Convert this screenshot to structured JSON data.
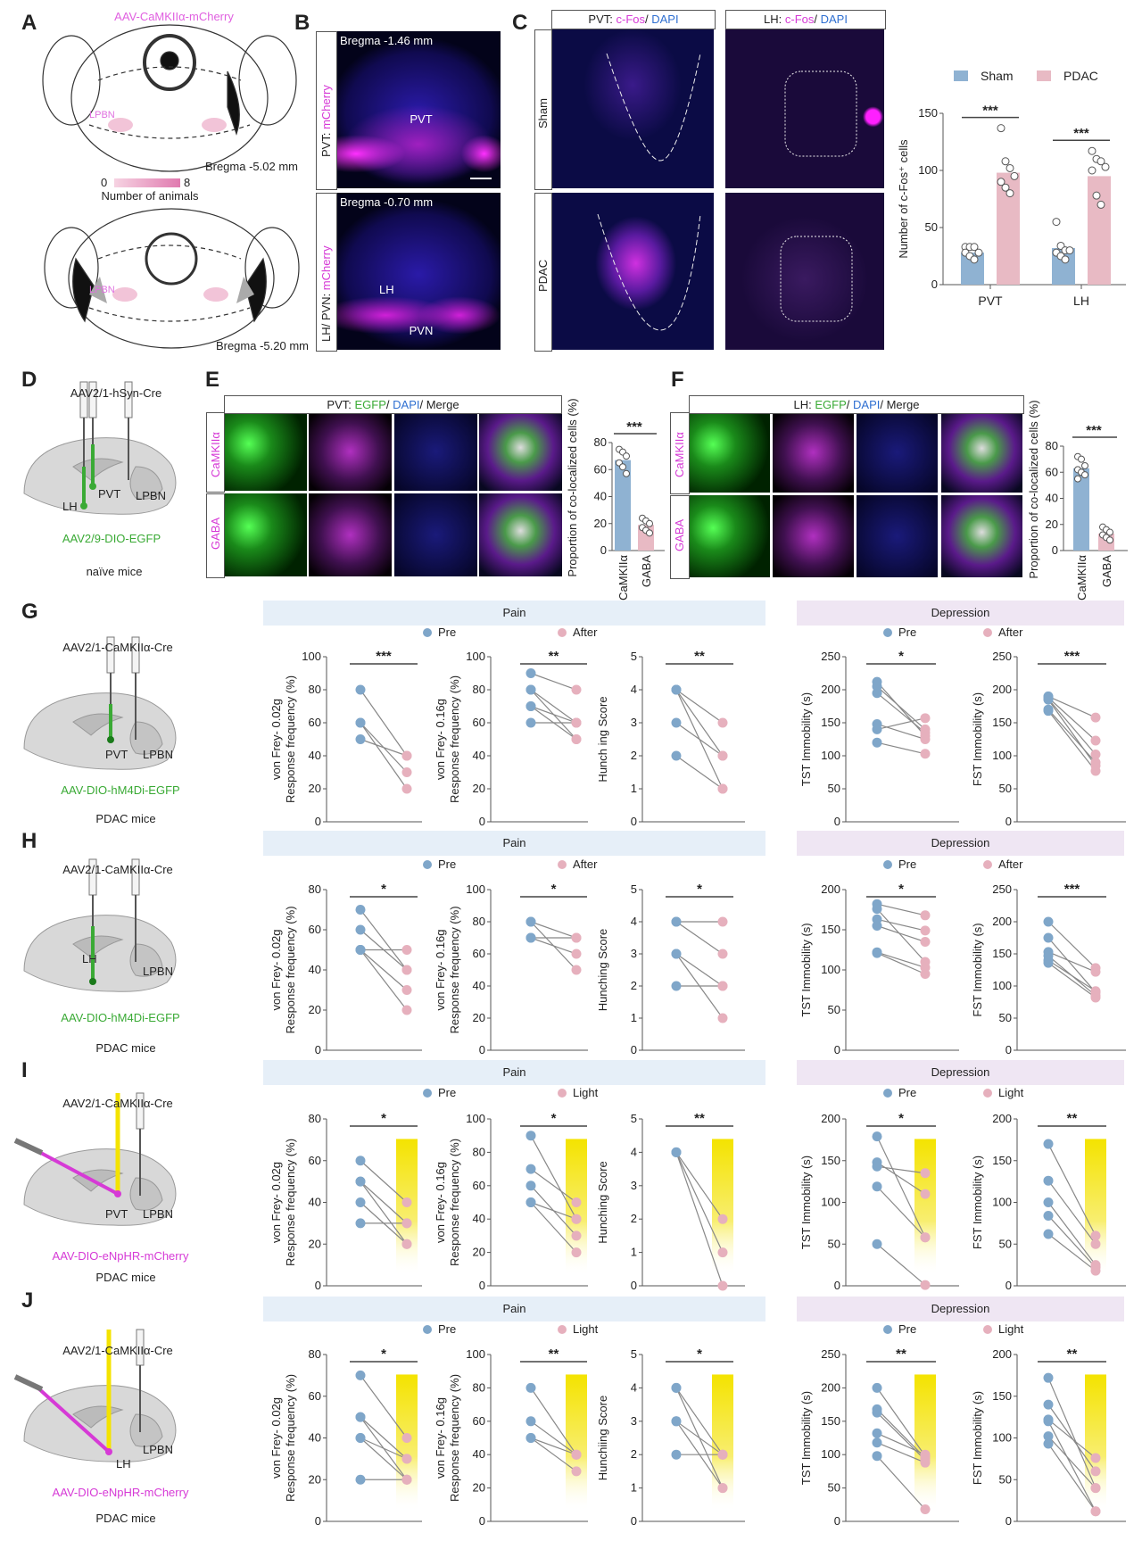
{
  "panel_labels": {
    "A": "A",
    "B": "B",
    "C": "C",
    "D": "D",
    "E": "E",
    "F": "F",
    "G": "G",
    "H": "H",
    "I": "I",
    "J": "J"
  },
  "colors": {
    "pre": "#7fa6c9",
    "post": "#e6b0bd",
    "bar_blue": "#8fb2d2",
    "bar_pink": "#e8bac4",
    "magenta": "#d63ad6",
    "green": "#3aaa35",
    "blue": "#2e6fd1",
    "pain_band": "#e6eff8",
    "depression_band": "#efe6f3",
    "light": "#f4e300"
  },
  "panel_a": {
    "title": "AAV-CaMKIIα-mCherry",
    "lpbn": "LPBN",
    "bregma_top": "Bregma -5.02 mm",
    "scale_min": "0",
    "scale_max": "8",
    "scale_label": "Number of animals",
    "bregma_bottom": "Bregma -5.20 mm"
  },
  "panel_b": {
    "row1": {
      "bregma": "Bregma -1.46 mm",
      "label_a": "PVT: ",
      "label_b": "mCherry",
      "region": "PVT"
    },
    "row2": {
      "bregma": "Bregma -0.70 mm",
      "label_a": "LH/ PVN: ",
      "label_b": "mCherry",
      "region_lh": "LH",
      "region_pvn": "PVN"
    }
  },
  "panel_c": {
    "col1": {
      "a": "PVT: ",
      "b": "c-Fos",
      "c": "/ ",
      "d": "DAPI"
    },
    "col2": {
      "a": "LH: ",
      "b": "c-Fos",
      "c": "/ ",
      "d": "DAPI"
    },
    "rows": [
      "Sham",
      "PDAC"
    ]
  },
  "panel_e": {
    "header": {
      "a": "PVT: ",
      "b": "EGFP",
      "c": "/ ",
      "d": "DAPI",
      "e": "/ Merge"
    },
    "rows": [
      "CaMKIIα",
      "GABA"
    ]
  },
  "panel_f": {
    "header": {
      "a": "LH: ",
      "b": "EGFP",
      "c": "/ ",
      "d": "DAPI",
      "e": "/ Merge"
    },
    "rows": [
      "CaMKIIα",
      "GABA"
    ]
  },
  "schematics": [
    {
      "panel": "D",
      "virus1": "AAV2/1-hSyn-Cre",
      "site1": "PVT",
      "site2": "LPBN",
      "site3": "LH",
      "virus2": "AAV2/9-DIO-EGFP",
      "mice": "naïve mice"
    },
    {
      "panel": "G",
      "virus1": "AAV2/1-CaMKIIα-Cre",
      "site1": "PVT",
      "site2": "LPBN",
      "virus2": "AAV-DIO-hM4Di-EGFP",
      "mice": "PDAC mice"
    },
    {
      "panel": "H",
      "virus1": "AAV2/1-CaMKIIα-Cre",
      "site1": "LH",
      "site2": "LPBN",
      "virus2": "AAV-DIO-hM4Di-EGFP",
      "mice": "PDAC mice"
    },
    {
      "panel": "I",
      "virus1": "AAV2/1-CaMKIIα-Cre",
      "site1": "PVT",
      "site2": "LPBN",
      "virus2": "AAV-DIO-eNpHR-mCherry",
      "mice": "PDAC mice"
    },
    {
      "panel": "J",
      "virus1": "AAV2/1-CaMKIIα-Cre",
      "site1": "LH",
      "site2": "LPBN",
      "virus2": "AAV-DIO-eNpHR-mCherry",
      "mice": "PDAC mice"
    }
  ],
  "behavior_rows": [
    {
      "panel": "G",
      "pain": "Pain",
      "depression": "Depression",
      "pre": "Pre",
      "post": "After"
    },
    {
      "panel": "H",
      "pain": "Pain",
      "depression": "Depression",
      "pre": "Pre",
      "post": "After"
    },
    {
      "panel": "I",
      "pain": "Pain",
      "depression": "Depression",
      "pre": "Pre",
      "post": "Light"
    },
    {
      "panel": "J",
      "pain": "Pain",
      "depression": "Depression",
      "pre": "Pre",
      "post": "Light"
    }
  ],
  "chart_data": [
    {
      "id": "C",
      "type": "bar",
      "categories": [
        "PVT",
        "LH"
      ],
      "ylabel": "Number of c-Fos⁺ cells",
      "ylim": [
        0,
        150
      ],
      "ticks": [
        0,
        50,
        100,
        150
      ],
      "legend_position": "top",
      "series": [
        {
          "name": "Sham",
          "values": [
            28,
            32
          ],
          "points": [
            [
              33,
              33,
              33,
              28,
              28,
              25,
              22
            ],
            [
              55,
              34,
              30,
              30,
              28,
              25,
              22
            ]
          ]
        },
        {
          "name": "PDAC",
          "values": [
            98,
            95
          ],
          "points": [
            [
              137,
              108,
              102,
              95,
              90,
              85,
              80
            ],
            [
              117,
              110,
              108,
              103,
              100,
              78,
              70
            ]
          ]
        }
      ],
      "significance": [
        "***",
        "***"
      ]
    },
    {
      "id": "E",
      "type": "bar",
      "categories": [
        "CaMKIIα",
        "GABA"
      ],
      "ylabel": "Proportion of co-localized cells (%)",
      "ylim": [
        0,
        80
      ],
      "ticks": [
        0,
        20,
        40,
        60,
        80
      ],
      "values": [
        67,
        19
      ],
      "points": [
        [
          75,
          73,
          70,
          65,
          62,
          57
        ],
        [
          24,
          22,
          20,
          17,
          15,
          13
        ]
      ],
      "significance": "***"
    },
    {
      "id": "F",
      "type": "bar",
      "categories": [
        "CaMKIIα",
        "GABA"
      ],
      "ylabel": "Proportion of co-localized cells (%)",
      "ylim": [
        0,
        80
      ],
      "ticks": [
        0,
        20,
        40,
        60,
        80
      ],
      "values": [
        63,
        13
      ],
      "points": [
        [
          72,
          70,
          65,
          62,
          60,
          58,
          55
        ],
        [
          18,
          16,
          14,
          12,
          10,
          8
        ]
      ],
      "significance": "***"
    },
    {
      "id": "G1",
      "row": "G",
      "type": "scatter",
      "ylabel": [
        "von Frey- 0.02g",
        "Response frequency (%)"
      ],
      "ylim": [
        0,
        100
      ],
      "ticks": [
        0,
        20,
        40,
        60,
        80,
        100
      ],
      "significance": "***",
      "pairs": [
        [
          80,
          40
        ],
        [
          60,
          30
        ],
        [
          60,
          20
        ],
        [
          50,
          40
        ]
      ]
    },
    {
      "id": "G2",
      "row": "G",
      "type": "scatter",
      "ylabel": [
        "von Frey- 0.16g",
        "Response frequency (%)"
      ],
      "ylim": [
        0,
        100
      ],
      "ticks": [
        0,
        20,
        40,
        60,
        80,
        100
      ],
      "significance": "**",
      "pairs": [
        [
          90,
          80
        ],
        [
          80,
          60
        ],
        [
          80,
          50
        ],
        [
          70,
          60
        ],
        [
          70,
          50
        ],
        [
          60,
          60
        ]
      ]
    },
    {
      "id": "G3",
      "row": "G",
      "type": "scatter",
      "ylabel": [
        "Hunch ing Score"
      ],
      "ylim": [
        0,
        5
      ],
      "ticks": [
        0,
        1,
        2,
        3,
        4,
        5
      ],
      "significance": "**",
      "pairs": [
        [
          4,
          3
        ],
        [
          4,
          1
        ],
        [
          4,
          2
        ],
        [
          3,
          2
        ],
        [
          2,
          1
        ]
      ]
    },
    {
      "id": "G4",
      "row": "G",
      "type": "scatter",
      "ylabel": [
        "TST Immobility (s)"
      ],
      "ylim": [
        0,
        250
      ],
      "ticks": [
        0,
        50,
        100,
        150,
        200,
        250
      ],
      "significance": "*",
      "pairs": [
        [
          212,
          130
        ],
        [
          205,
          140
        ],
        [
          195,
          135
        ],
        [
          148,
          125
        ],
        [
          140,
          157
        ],
        [
          120,
          103
        ]
      ]
    },
    {
      "id": "G5",
      "row": "G",
      "type": "scatter",
      "ylabel": [
        "FST Immobility (s)"
      ],
      "ylim": [
        0,
        250
      ],
      "ticks": [
        0,
        50,
        100,
        150,
        200,
        250
      ],
      "significance": "***",
      "pairs": [
        [
          190,
          158
        ],
        [
          188,
          123
        ],
        [
          186,
          102
        ],
        [
          185,
          85
        ],
        [
          170,
          90
        ],
        [
          168,
          77
        ]
      ]
    },
    {
      "id": "H1",
      "row": "H",
      "type": "scatter",
      "ylabel": [
        "von Frey- 0.02g",
        "Response frequency (%)"
      ],
      "ylim": [
        0,
        80
      ],
      "ticks": [
        0,
        20,
        40,
        60,
        80
      ],
      "significance": "*",
      "pairs": [
        [
          70,
          40
        ],
        [
          60,
          40
        ],
        [
          50,
          50
        ],
        [
          50,
          30
        ],
        [
          50,
          20
        ]
      ]
    },
    {
      "id": "H2",
      "row": "H",
      "type": "scatter",
      "ylabel": [
        "von Frey- 0.16g",
        "Response frequency (%)"
      ],
      "ylim": [
        0,
        100
      ],
      "ticks": [
        0,
        20,
        40,
        60,
        80,
        100
      ],
      "significance": "*",
      "pairs": [
        [
          80,
          70
        ],
        [
          80,
          50
        ],
        [
          70,
          70
        ],
        [
          70,
          60
        ]
      ]
    },
    {
      "id": "H3",
      "row": "H",
      "type": "scatter",
      "ylabel": [
        "Hunching Score"
      ],
      "ylim": [
        0,
        5
      ],
      "ticks": [
        0,
        1,
        2,
        3,
        4,
        5
      ],
      "significance": "*",
      "pairs": [
        [
          4,
          4
        ],
        [
          4,
          3
        ],
        [
          3,
          2
        ],
        [
          3,
          1
        ],
        [
          2,
          2
        ]
      ]
    },
    {
      "id": "H4",
      "row": "H",
      "type": "scatter",
      "ylabel": [
        "TST Immobility (s)"
      ],
      "ylim": [
        0,
        200
      ],
      "ticks": [
        0,
        50,
        100,
        150,
        200
      ],
      "significance": "*",
      "pairs": [
        [
          182,
          168
        ],
        [
          176,
          110
        ],
        [
          163,
          149
        ],
        [
          155,
          135
        ],
        [
          122,
          103
        ],
        [
          121,
          95
        ]
      ]
    },
    {
      "id": "H5",
      "row": "H",
      "type": "scatter",
      "ylabel": [
        "FST Immobility (s)"
      ],
      "ylim": [
        0,
        250
      ],
      "ticks": [
        0,
        50,
        100,
        150,
        200,
        250
      ],
      "significance": "***",
      "pairs": [
        [
          200,
          128
        ],
        [
          175,
          90
        ],
        [
          153,
          122
        ],
        [
          147,
          85
        ],
        [
          140,
          92
        ],
        [
          136,
          82
        ]
      ]
    },
    {
      "id": "I1",
      "row": "I",
      "type": "scatter",
      "ylabel": [
        "von Frey- 0.02g",
        "Response frequency (%)"
      ],
      "ylim": [
        0,
        80
      ],
      "ticks": [
        0,
        20,
        40,
        60,
        80
      ],
      "significance": "*",
      "light": true,
      "pairs": [
        [
          60,
          40
        ],
        [
          50,
          30
        ],
        [
          50,
          20
        ],
        [
          40,
          20
        ],
        [
          30,
          30
        ]
      ]
    },
    {
      "id": "I2",
      "row": "I",
      "type": "scatter",
      "ylabel": [
        "von Frey- 0.16g",
        "Response frequency (%)"
      ],
      "ylim": [
        0,
        100
      ],
      "ticks": [
        0,
        20,
        40,
        60,
        80,
        100
      ],
      "significance": "*",
      "light": true,
      "pairs": [
        [
          90,
          40
        ],
        [
          70,
          50
        ],
        [
          60,
          30
        ],
        [
          50,
          20
        ],
        [
          50,
          40
        ]
      ]
    },
    {
      "id": "I3",
      "row": "I",
      "type": "scatter",
      "ylabel": [
        "Hunching Score"
      ],
      "ylim": [
        0,
        5
      ],
      "ticks": [
        0,
        1,
        2,
        3,
        4,
        5
      ],
      "significance": "**",
      "light": true,
      "pairs": [
        [
          4,
          2
        ],
        [
          4,
          1
        ],
        [
          4,
          0
        ]
      ]
    },
    {
      "id": "I4",
      "row": "I",
      "type": "scatter",
      "ylabel": [
        "TST Immobility (s)"
      ],
      "ylim": [
        0,
        200
      ],
      "ticks": [
        0,
        50,
        100,
        150,
        200
      ],
      "significance": "*",
      "light": true,
      "pairs": [
        [
          179,
          58
        ],
        [
          148,
          110
        ],
        [
          143,
          135
        ],
        [
          119,
          58
        ],
        [
          50,
          1
        ]
      ]
    },
    {
      "id": "I5",
      "row": "I",
      "type": "scatter",
      "ylabel": [
        "FST Immobility (s)"
      ],
      "ylim": [
        0,
        200
      ],
      "ticks": [
        0,
        50,
        100,
        150,
        200
      ],
      "significance": "**",
      "light": true,
      "pairs": [
        [
          170,
          60
        ],
        [
          126,
          50
        ],
        [
          100,
          25
        ],
        [
          84,
          22
        ],
        [
          62,
          18
        ]
      ]
    },
    {
      "id": "J1",
      "row": "J",
      "type": "scatter",
      "ylabel": [
        "von Frey- 0.02g",
        "Response frequency (%)"
      ],
      "ylim": [
        0,
        80
      ],
      "ticks": [
        0,
        20,
        40,
        60,
        80
      ],
      "significance": "*",
      "light": true,
      "pairs": [
        [
          70,
          40
        ],
        [
          50,
          30
        ],
        [
          50,
          20
        ],
        [
          40,
          30
        ],
        [
          40,
          20
        ],
        [
          20,
          20
        ]
      ]
    },
    {
      "id": "J2",
      "row": "J",
      "type": "scatter",
      "ylabel": [
        "von Frey- 0.16g",
        "Response frequency (%)"
      ],
      "ylim": [
        0,
        100
      ],
      "ticks": [
        0,
        20,
        40,
        60,
        80,
        100
      ],
      "significance": "**",
      "light": true,
      "pairs": [
        [
          80,
          40
        ],
        [
          60,
          40
        ],
        [
          50,
          40
        ],
        [
          50,
          30
        ]
      ]
    },
    {
      "id": "J3",
      "row": "J",
      "type": "scatter",
      "ylabel": [
        "Hunchiing Score"
      ],
      "ylim": [
        0,
        5
      ],
      "ticks": [
        0,
        1,
        2,
        3,
        4,
        5
      ],
      "significance": "*",
      "light": true,
      "pairs": [
        [
          4,
          2
        ],
        [
          4,
          1
        ],
        [
          3,
          2
        ],
        [
          3,
          1
        ],
        [
          2,
          2
        ]
      ]
    },
    {
      "id": "J4",
      "row": "J",
      "type": "scatter",
      "ylabel": [
        "TST Immobility (s)"
      ],
      "ylim": [
        0,
        250
      ],
      "ticks": [
        0,
        50,
        100,
        150,
        200,
        250
      ],
      "significance": "**",
      "light": true,
      "pairs": [
        [
          200,
          98
        ],
        [
          168,
          95
        ],
        [
          163,
          92
        ],
        [
          132,
          100
        ],
        [
          118,
          88
        ],
        [
          98,
          18
        ]
      ]
    },
    {
      "id": "J5",
      "row": "J",
      "type": "scatter",
      "ylabel": [
        "FST Immobility (s)"
      ],
      "ylim": [
        0,
        200
      ],
      "ticks": [
        0,
        50,
        100,
        150,
        200
      ],
      "significance": "**",
      "light": true,
      "pairs": [
        [
          172,
          40
        ],
        [
          140,
          60
        ],
        [
          122,
          76
        ],
        [
          120,
          12
        ],
        [
          102,
          40
        ],
        [
          93,
          12
        ]
      ]
    }
  ]
}
